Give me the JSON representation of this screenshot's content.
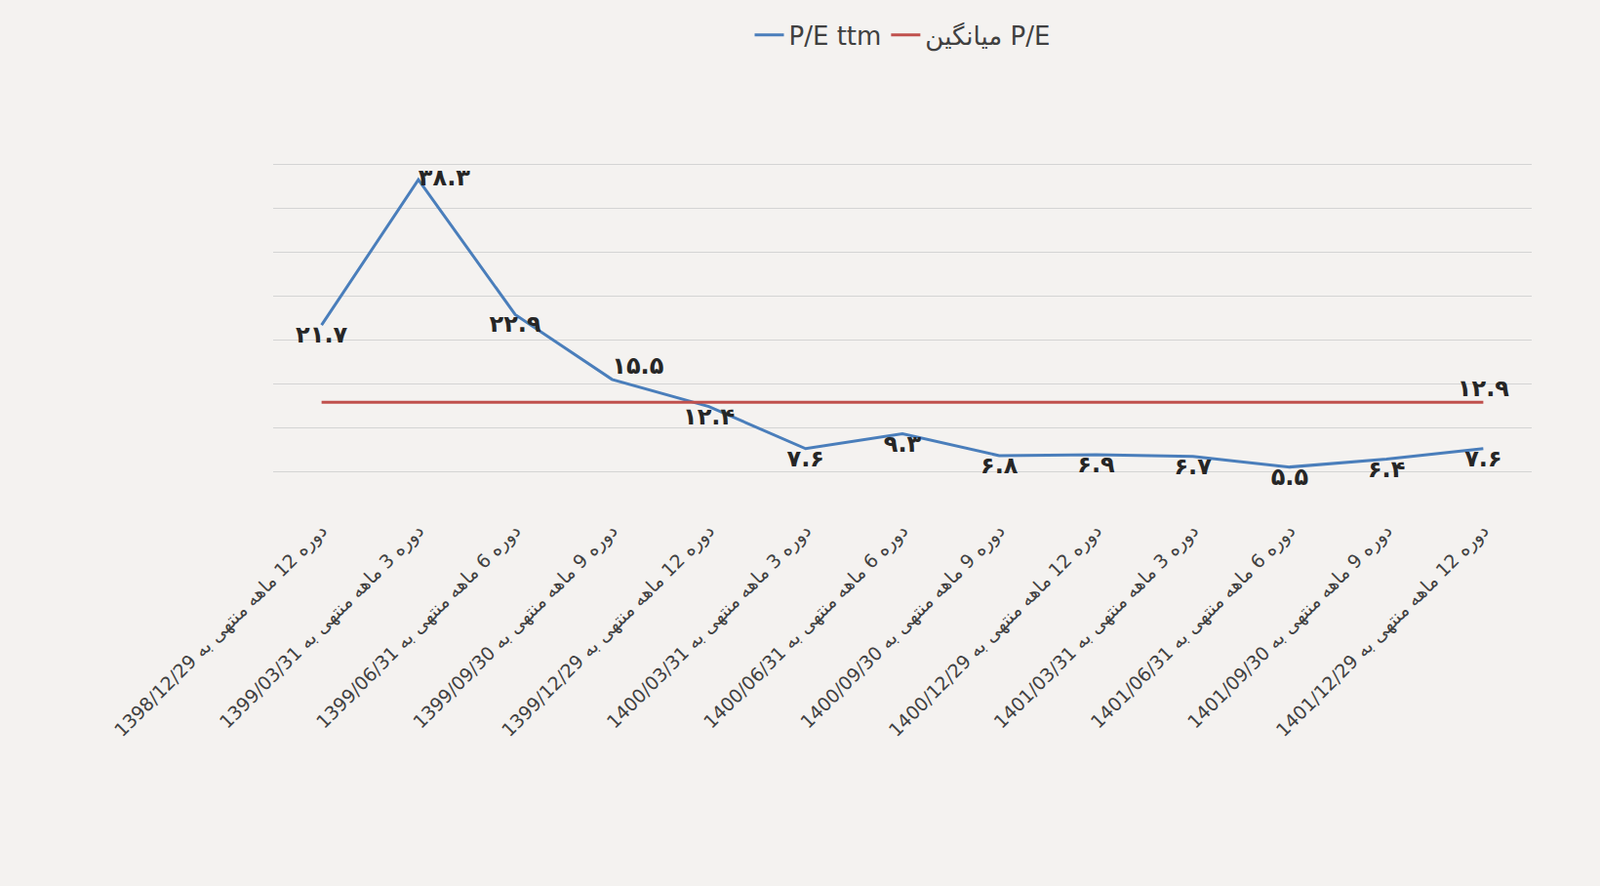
{
  "chart_data": {
    "type": "line",
    "categories": [
      "دوره 12 ماهه منتهی به 1398/12/29",
      "دوره 3 ماهه منتهی به 1399/03/31",
      "دوره 6 ماهه منتهی به 1399/06/31",
      "دوره 9 ماهه منتهی به 1399/09/30",
      "دوره 12 ماهه منتهی به 1399/12/29",
      "دوره 3 ماهه منتهی به 1400/03/31",
      "دوره 6 ماهه منتهی به 1400/06/31",
      "دوره 9 ماهه منتهی به 1400/09/30",
      "دوره 12 ماهه منتهی به 1400/12/29",
      "دوره 3 ماهه منتهی به 1401/03/31",
      "دوره 6 ماهه منتهی به 1401/06/31",
      "دوره 9 ماهه منتهی به 1401/09/30",
      "دوره 12 ماهه منتهی به 1401/12/29"
    ],
    "series": [
      {
        "name": "P/E ttm",
        "color": "#4a7ebb",
        "values": [
          21.7,
          38.3,
          22.9,
          15.5,
          12.4,
          7.6,
          9.3,
          6.8,
          6.9,
          6.7,
          5.5,
          6.4,
          7.6
        ],
        "value_labels": [
          "۲۱.۷",
          "۳۸.۳",
          "۲۲.۹",
          "۱۵.۵",
          "۱۲.۴",
          "۷.۶",
          "۹.۳",
          "۶.۸",
          "۶.۹",
          "۶.۷",
          "۵.۵",
          "۶.۴",
          "۷.۶"
        ]
      },
      {
        "name": "میانگین P/E",
        "color": "#c0504d",
        "values": [
          12.9,
          12.9,
          12.9,
          12.9,
          12.9,
          12.9,
          12.9,
          12.9,
          12.9,
          12.9,
          12.9,
          12.9,
          12.9
        ],
        "value_labels": [
          null,
          null,
          null,
          null,
          null,
          null,
          null,
          null,
          null,
          null,
          null,
          null,
          "۱۲.۹"
        ]
      }
    ],
    "ylim": [
      0,
      45
    ],
    "yticks": [
      0,
      5,
      10,
      15,
      20,
      25,
      30,
      35,
      40,
      45
    ],
    "grid": true,
    "tick_labels": "x",
    "data_labels": true,
    "legend": "top"
  }
}
